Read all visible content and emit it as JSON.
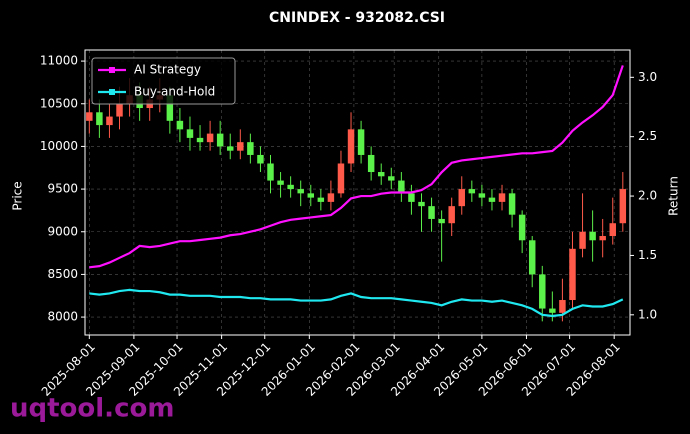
{
  "chart_data": {
    "type": "candlestick",
    "title": "CNINDEX - 932082.CSI",
    "ylabel": "Price",
    "y2label": "Return",
    "watermark": "uqtool.com",
    "x": [
      "2025-08-01",
      "2025-08-08",
      "2025-08-15",
      "2025-08-22",
      "2025-08-29",
      "2025-09-05",
      "2025-09-12",
      "2025-09-19",
      "2025-09-26",
      "2025-10-03",
      "2025-10-10",
      "2025-10-17",
      "2025-10-24",
      "2025-10-31",
      "2025-11-07",
      "2025-11-14",
      "2025-11-21",
      "2025-11-28",
      "2025-12-05",
      "2025-12-12",
      "2025-12-19",
      "2025-12-26",
      "2026-01-02",
      "2026-01-09",
      "2026-01-16",
      "2026-01-23",
      "2026-01-30",
      "2026-02-06",
      "2026-02-13",
      "2026-02-20",
      "2026-02-27",
      "2026-03-06",
      "2026-03-13",
      "2026-03-20",
      "2026-03-27",
      "2026-04-03",
      "2026-04-10",
      "2026-04-17",
      "2026-04-24",
      "2026-05-01",
      "2026-05-08",
      "2026-05-15",
      "2026-05-22",
      "2026-05-29",
      "2026-06-05",
      "2026-06-12",
      "2026-06-19",
      "2026-06-26",
      "2026-07-03",
      "2026-07-10",
      "2026-07-17",
      "2026-07-24",
      "2026-07-31",
      "2026-08-07"
    ],
    "open": [
      10300,
      10400,
      10250,
      10350,
      10500,
      10600,
      10450,
      10550,
      10600,
      10300,
      10200,
      10100,
      10050,
      10150,
      10000,
      9950,
      10050,
      9900,
      9800,
      9600,
      9550,
      9500,
      9450,
      9400,
      9350,
      9450,
      9800,
      10200,
      9900,
      9700,
      9650,
      9600,
      9450,
      9350,
      9300,
      9150,
      9100,
      9300,
      9500,
      9450,
      9400,
      9350,
      9450,
      9200,
      8900,
      8500,
      8100,
      8050,
      8200,
      8800,
      9000,
      8900,
      8950,
      9100
    ],
    "high": [
      10550,
      10550,
      10500,
      10700,
      10800,
      10750,
      10700,
      10800,
      10700,
      10450,
      10350,
      10250,
      10300,
      10300,
      10150,
      10200,
      10150,
      10000,
      9900,
      9700,
      9650,
      9600,
      9550,
      9500,
      9600,
      9950,
      10400,
      10300,
      10000,
      9800,
      9750,
      9700,
      9550,
      9450,
      9400,
      9250,
      9400,
      9650,
      9600,
      9550,
      9500,
      9550,
      9500,
      9250,
      8950,
      8600,
      8300,
      8450,
      9000,
      9450,
      9250,
      9150,
      9400,
      9700
    ],
    "low": [
      10150,
      10100,
      10100,
      10200,
      10350,
      10300,
      10300,
      10400,
      10150,
      10050,
      9950,
      9950,
      9950,
      9900,
      9850,
      9850,
      9800,
      9700,
      9450,
      9400,
      9400,
      9300,
      9300,
      9250,
      9250,
      9400,
      9700,
      9800,
      9600,
      9550,
      9500,
      9350,
      9200,
      9000,
      9000,
      8650,
      8950,
      9200,
      9350,
      9300,
      9250,
      9250,
      9050,
      8750,
      8350,
      7950,
      7950,
      7950,
      8100,
      8700,
      8650,
      8700,
      8850,
      9000
    ],
    "close": [
      10400,
      10250,
      10350,
      10500,
      10600,
      10450,
      10550,
      10600,
      10300,
      10200,
      10100,
      10050,
      10150,
      10000,
      9950,
      10050,
      9900,
      9800,
      9600,
      9550,
      9500,
      9450,
      9400,
      9350,
      9450,
      9800,
      10200,
      9900,
      9700,
      9650,
      9600,
      9450,
      9350,
      9300,
      9150,
      9100,
      9300,
      9500,
      9450,
      9400,
      9350,
      9450,
      9200,
      8900,
      8500,
      8100,
      8050,
      8200,
      8800,
      9000,
      8900,
      8950,
      9100,
      9500
    ],
    "up_color": "#ff5a4a",
    "down_color": "#5cf04a",
    "series": [
      {
        "name": "AI Strategy",
        "color": "#ff10ff",
        "axis": "y2",
        "values": [
          1.4,
          1.41,
          1.44,
          1.48,
          1.52,
          1.58,
          1.57,
          1.58,
          1.6,
          1.62,
          1.62,
          1.63,
          1.64,
          1.65,
          1.67,
          1.68,
          1.7,
          1.72,
          1.75,
          1.78,
          1.8,
          1.81,
          1.82,
          1.83,
          1.84,
          1.9,
          1.98,
          2.0,
          2.0,
          2.02,
          2.03,
          2.03,
          2.03,
          2.05,
          2.1,
          2.2,
          2.28,
          2.3,
          2.31,
          2.32,
          2.33,
          2.34,
          2.35,
          2.36,
          2.36,
          2.37,
          2.38,
          2.45,
          2.55,
          2.62,
          2.68,
          2.75,
          2.85,
          3.1
        ]
      },
      {
        "name": "Buy-and-Hold",
        "color": "#20e8f0",
        "axis": "y2",
        "values": [
          1.18,
          1.17,
          1.18,
          1.2,
          1.21,
          1.2,
          1.2,
          1.19,
          1.17,
          1.17,
          1.16,
          1.16,
          1.16,
          1.15,
          1.15,
          1.15,
          1.14,
          1.14,
          1.13,
          1.13,
          1.13,
          1.12,
          1.12,
          1.12,
          1.13,
          1.16,
          1.18,
          1.15,
          1.14,
          1.14,
          1.14,
          1.13,
          1.12,
          1.11,
          1.1,
          1.08,
          1.11,
          1.13,
          1.12,
          1.12,
          1.11,
          1.12,
          1.1,
          1.08,
          1.05,
          1.0,
          0.99,
          1.0,
          1.05,
          1.08,
          1.07,
          1.07,
          1.09,
          1.13
        ]
      }
    ],
    "xlim": [
      "2025-07-29",
      "2026-08-12"
    ],
    "xticks": [
      "2025-08-01",
      "2025-09-01",
      "2025-10-01",
      "2025-11-01",
      "2025-12-01",
      "2026-01-01",
      "2026-02-01",
      "2026-03-01",
      "2026-04-01",
      "2026-05-01",
      "2026-06-01",
      "2026-07-01",
      "2026-08-01"
    ],
    "ylim": [
      7790,
      11130
    ],
    "yticks": [
      8000,
      8500,
      9000,
      9500,
      10000,
      10500,
      11000
    ],
    "y2lim": [
      0.83,
      3.23
    ],
    "y2ticks": [
      {
        "value": 1,
        "label": "1.0"
      },
      1.5,
      {
        "value": 2,
        "label": "2.0"
      },
      2.5,
      {
        "value": 3,
        "label": "3.0"
      }
    ],
    "grid": true,
    "legend": "upper left"
  }
}
